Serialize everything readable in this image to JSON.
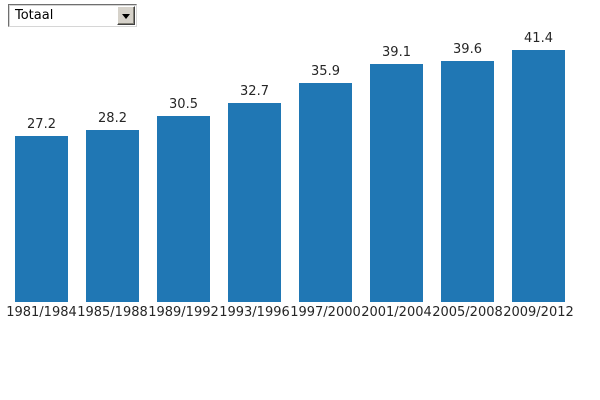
{
  "dropdown": {
    "value": "Totaal"
  },
  "chart_data": {
    "type": "bar",
    "title": "",
    "xlabel": "",
    "ylabel": "",
    "categories": [
      "1981/1984",
      "1985/1988",
      "1989/1992",
      "1993/1996",
      "1997/2000",
      "2001/2004",
      "2005/2008",
      "2009/2012"
    ],
    "values": [
      27.2,
      28.2,
      30.5,
      32.7,
      35.9,
      39.1,
      39.6,
      41.4
    ],
    "value_labels_shown": true,
    "ylim": [
      0,
      45
    ],
    "grid": false,
    "legend": "none",
    "axes_shown": false,
    "bar_color": "#2077b4",
    "text_color": "#262626"
  }
}
